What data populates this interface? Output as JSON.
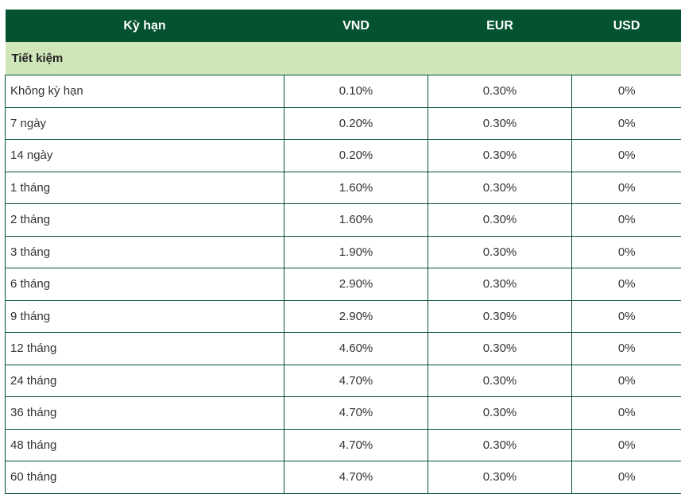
{
  "table": {
    "headers": [
      "Kỳ hạn",
      "VND",
      "EUR",
      "USD"
    ],
    "section_title": "Tiết kiệm",
    "rows": [
      [
        "Không kỳ hạn",
        "0.10%",
        "0.30%",
        "0%"
      ],
      [
        "7 ngày",
        "0.20%",
        "0.30%",
        "0%"
      ],
      [
        "14 ngày",
        "0.20%",
        "0.30%",
        "0%"
      ],
      [
        "1 tháng",
        "1.60%",
        "0.30%",
        "0%"
      ],
      [
        "2 tháng",
        "1.60%",
        "0.30%",
        "0%"
      ],
      [
        "3 tháng",
        "1.90%",
        "0.30%",
        "0%"
      ],
      [
        "6 tháng",
        "2.90%",
        "0.30%",
        "0%"
      ],
      [
        "9 tháng",
        "2.90%",
        "0.30%",
        "0%"
      ],
      [
        "12 tháng",
        "4.60%",
        "0.30%",
        "0%"
      ],
      [
        "24 tháng",
        "4.70%",
        "0.30%",
        "0%"
      ],
      [
        "36 tháng",
        "4.70%",
        "0.30%",
        "0%"
      ],
      [
        "48 tháng",
        "4.70%",
        "0.30%",
        "0%"
      ],
      [
        "60 tháng",
        "4.70%",
        "0.30%",
        "0%"
      ]
    ]
  },
  "colors": {
    "header_bg": "#045230",
    "section_bg": "#cfe6b8",
    "border": "#045230"
  }
}
